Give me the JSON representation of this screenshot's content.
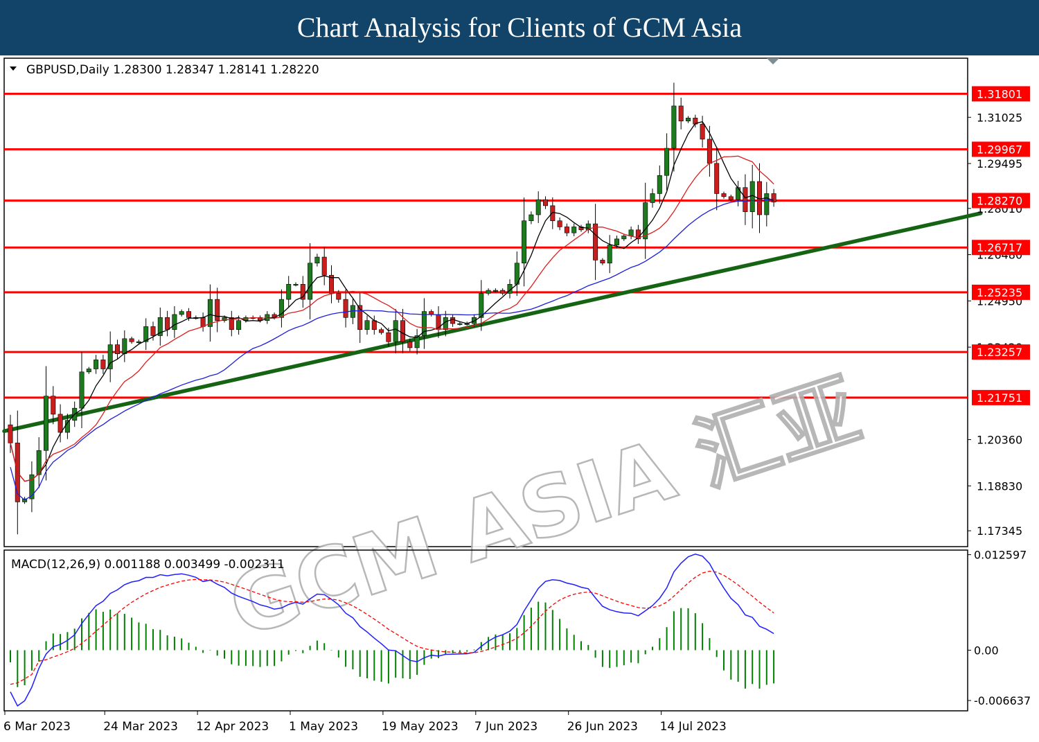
{
  "banner": {
    "title": "Chart Analysis for Clients of GCM Asia"
  },
  "colors": {
    "banner_bg": "#124469",
    "level_line": "#ff0000",
    "trendline": "#146414",
    "ma_fast": "#000000",
    "ma_mid": "#dc1e1e",
    "ma_slow": "#1e1edc",
    "macd_line": "#1e1eff",
    "signal_line": "#ff0000",
    "histogram": "#008200",
    "bull_candle": "#1e7a1e",
    "bear_candle": "#c81e1e"
  },
  "chart_data": [
    {
      "type": "candlestick",
      "header": "GBPUSD,Daily  1.28300 1.28347 1.28141 1.28220",
      "symbol": "GBPUSD",
      "timeframe": "Daily",
      "ohlc_last": [
        1.283,
        1.28347,
        1.28141,
        1.2822
      ],
      "ylim": [
        1.1682,
        1.3298
      ],
      "y_ticks": [
        1.31025,
        1.29495,
        1.2801,
        1.2648,
        1.2495,
        1.2342,
        1.2036,
        1.1883,
        1.17345
      ],
      "x_ticks": [
        "6 Mar 2023",
        "24 Mar 2023",
        "12 Apr 2023",
        "1 May 2023",
        "19 May 2023",
        "7 Jun 2023",
        "26 Jun 2023",
        "14 Jul 2023"
      ],
      "x_tick_day_index": [
        0,
        14,
        27,
        40,
        53,
        66,
        79,
        92
      ],
      "levels": [
        1.31801,
        1.29967,
        1.2827,
        1.26717,
        1.25235,
        1.23257,
        1.21751
      ],
      "trendline": {
        "start": [
          "6 Mar 2023",
          1.2064
        ],
        "end": [
          "end",
          1.2785
        ],
        "end_day_index": 136
      },
      "close_path": [
        [
          0,
          1.2025
        ],
        [
          1,
          1.183
        ],
        [
          2,
          1.184
        ],
        [
          3,
          1.192
        ],
        [
          4,
          1.2
        ],
        [
          5,
          1.218
        ],
        [
          6,
          1.212
        ],
        [
          7,
          1.206
        ],
        [
          8,
          1.21
        ],
        [
          9,
          1.214
        ],
        [
          10,
          1.226
        ],
        [
          11,
          1.227
        ],
        [
          12,
          1.23
        ],
        [
          13,
          1.227
        ],
        [
          14,
          1.235
        ],
        [
          15,
          1.232
        ],
        [
          16,
          1.237
        ],
        [
          17,
          1.236
        ],
        [
          18,
          1.236
        ],
        [
          19,
          1.241
        ],
        [
          20,
          1.238
        ],
        [
          21,
          1.244
        ],
        [
          22,
          1.24
        ],
        [
          23,
          1.245
        ],
        [
          24,
          1.246
        ],
        [
          25,
          1.244
        ],
        [
          26,
          1.244
        ],
        [
          27,
          1.241
        ],
        [
          28,
          1.25
        ],
        [
          29,
          1.243
        ],
        [
          30,
          1.244
        ],
        [
          31,
          1.24
        ],
        [
          32,
          1.243
        ],
        [
          33,
          1.244
        ],
        [
          34,
          1.244
        ],
        [
          35,
          1.243
        ],
        [
          36,
          1.245
        ],
        [
          37,
          1.244
        ],
        [
          38,
          1.25
        ],
        [
          39,
          1.255
        ],
        [
          40,
          1.255
        ],
        [
          41,
          1.25
        ],
        [
          42,
          1.262
        ],
        [
          43,
          1.264
        ],
        [
          44,
          1.258
        ],
        [
          45,
          1.252
        ],
        [
          46,
          1.25
        ],
        [
          47,
          1.244
        ],
        [
          48,
          1.248
        ],
        [
          49,
          1.24
        ],
        [
          50,
          1.243
        ],
        [
          51,
          1.24
        ],
        [
          52,
          1.239
        ],
        [
          53,
          1.236
        ],
        [
          54,
          1.243
        ],
        [
          55,
          1.236
        ],
        [
          56,
          1.234
        ],
        [
          57,
          1.238
        ],
        [
          58,
          1.246
        ],
        [
          59,
          1.245
        ],
        [
          60,
          1.24
        ],
        [
          61,
          1.244
        ],
        [
          62,
          1.242
        ],
        [
          63,
          1.242
        ],
        [
          64,
          1.242
        ],
        [
          65,
          1.244
        ],
        [
          66,
          1.252
        ],
        [
          67,
          1.253
        ],
        [
          68,
          1.253
        ],
        [
          69,
          1.252
        ],
        [
          70,
          1.255
        ],
        [
          71,
          1.262
        ],
        [
          72,
          1.276
        ],
        [
          73,
          1.278
        ],
        [
          74,
          1.283
        ],
        [
          75,
          1.281
        ],
        [
          76,
          1.276
        ],
        [
          77,
          1.274
        ],
        [
          78,
          1.272
        ],
        [
          79,
          1.274
        ],
        [
          80,
          1.273
        ],
        [
          81,
          1.275
        ],
        [
          82,
          1.263
        ],
        [
          83,
          1.262
        ],
        [
          84,
          1.268
        ],
        [
          85,
          1.27
        ],
        [
          86,
          1.271
        ],
        [
          87,
          1.273
        ],
        [
          88,
          1.27
        ],
        [
          89,
          1.282
        ],
        [
          90,
          1.285
        ],
        [
          91,
          1.291
        ],
        [
          92,
          1.3
        ],
        [
          93,
          1.314
        ],
        [
          94,
          1.309
        ],
        [
          95,
          1.31
        ],
        [
          96,
          1.308
        ],
        [
          97,
          1.303
        ],
        [
          98,
          1.295
        ],
        [
          99,
          1.285
        ],
        [
          100,
          1.284
        ],
        [
          101,
          1.283
        ],
        [
          102,
          1.287
        ],
        [
          103,
          1.279
        ],
        [
          104,
          1.289
        ],
        [
          105,
          1.278
        ],
        [
          106,
          1.285
        ],
        [
          107,
          1.2822
        ]
      ]
    },
    {
      "type": "macd",
      "header": "MACD(12,26,9) 0.001188 0.003499 -0.002311",
      "params": [
        12,
        26,
        9
      ],
      "values": [
        0.001188,
        0.003499,
        -0.002311
      ],
      "ylim": [
        -0.008,
        0.0132
      ],
      "y_ticks": [
        0.012597,
        0.0,
        -0.006637
      ],
      "y_tick_labels": [
        "0.012597",
        "0.00",
        "-0.006637"
      ]
    }
  ]
}
